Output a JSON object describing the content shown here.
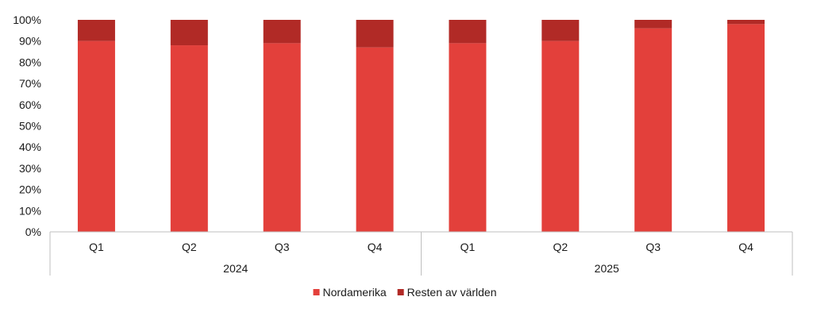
{
  "chart_data": {
    "type": "bar",
    "stacked": true,
    "groups": [
      {
        "label": "2024",
        "categories": [
          "Q1",
          "Q2",
          "Q3",
          "Q4"
        ]
      },
      {
        "label": "2025",
        "categories": [
          "Q1",
          "Q2",
          "Q3",
          "Q4"
        ]
      }
    ],
    "series": [
      {
        "name": "Nordamerika",
        "color": "#e3403b",
        "values": [
          90,
          88,
          89,
          87,
          89,
          90,
          96,
          98
        ]
      },
      {
        "name": "Resten av världen",
        "color": "#b12a26",
        "values": [
          10,
          12,
          11,
          13,
          11,
          10,
          4,
          2
        ]
      }
    ],
    "yticks": [
      "0%",
      "10%",
      "20%",
      "30%",
      "40%",
      "50%",
      "60%",
      "70%",
      "80%",
      "90%",
      "100%"
    ],
    "ylim": [
      0,
      100
    ],
    "grid": false,
    "legend": "bottom"
  }
}
